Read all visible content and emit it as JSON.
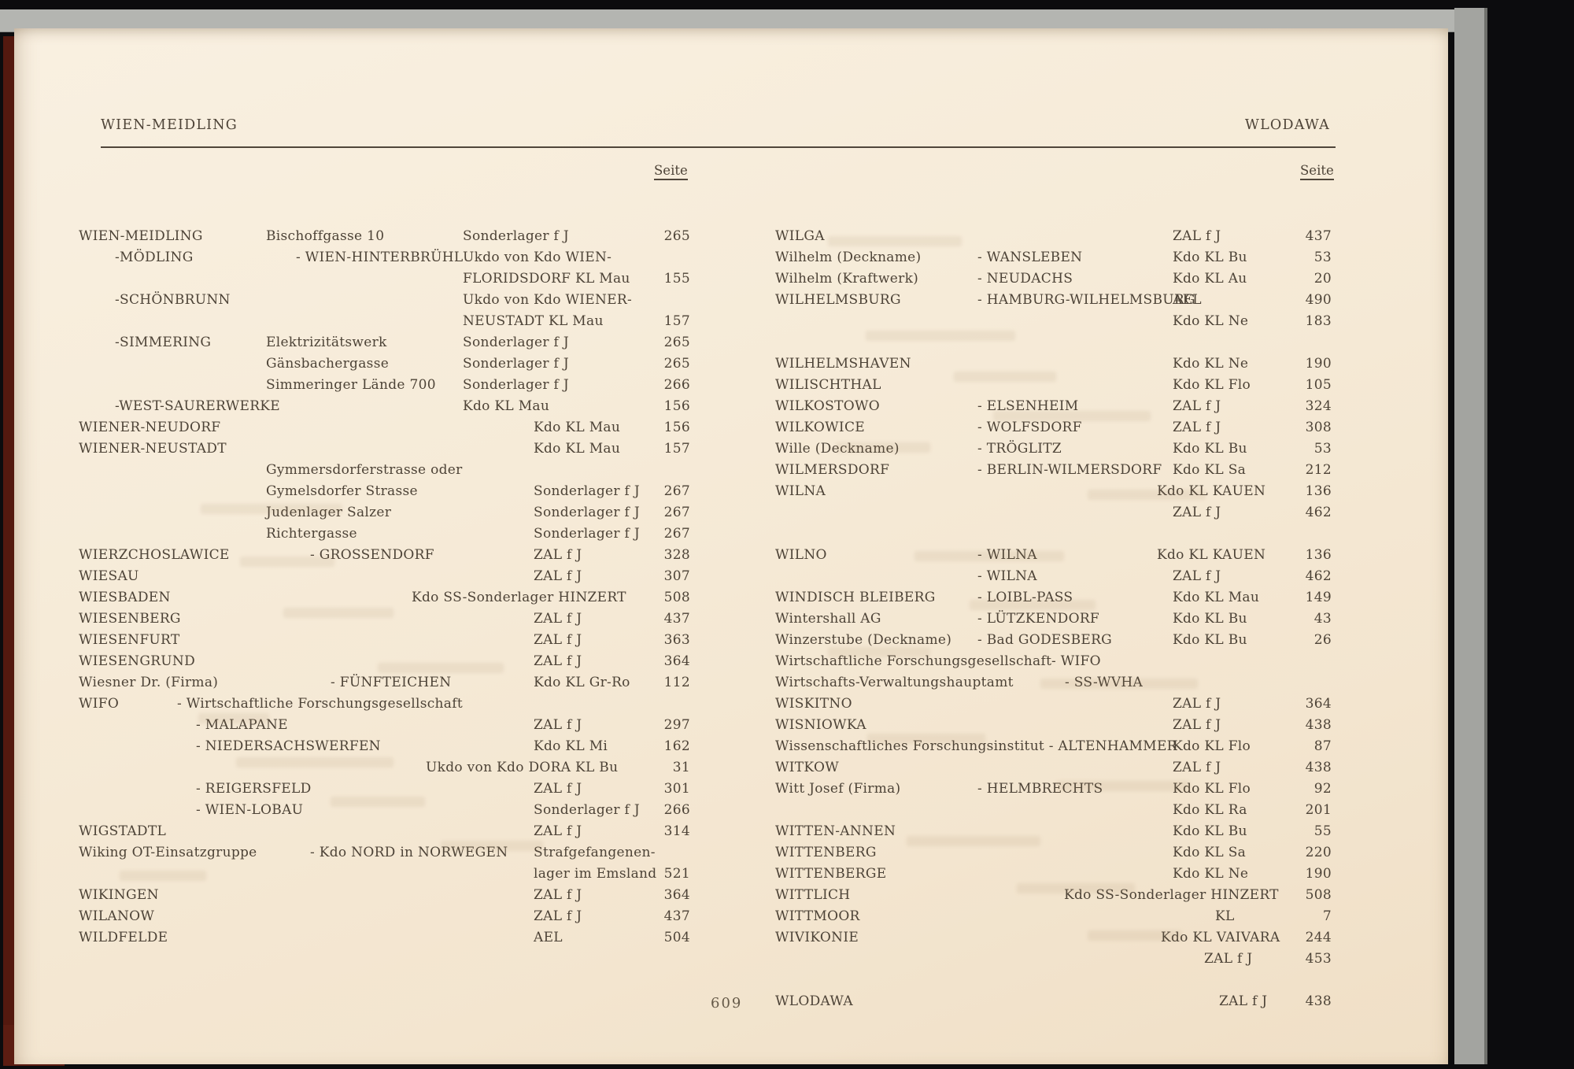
{
  "page": {
    "header_left": "WIEN-MEIDLING",
    "header_right": "WLODAWA",
    "seite_label": "Seite",
    "page_number": "609",
    "ink_color": "#4d4337",
    "paper_color": "#f5e9d6",
    "cover_color": "#a3a4a0",
    "spine_color": "#54190f"
  },
  "columns": {
    "left": {
      "rows": [
        [
          {
            "t": "WIEN-MEIDLING",
            "k": "name"
          },
          {
            "t": "Bischoffgasse 10",
            "k": "street"
          },
          {
            "t": "Sonderlager f J",
            "k": "camp1"
          },
          {
            "t": "265",
            "k": "page"
          }
        ],
        [
          {
            "t": "-MÖDLING",
            "k": "sub"
          },
          {
            "t": "- WIEN-HINTERBRÜHL",
            "k": "alias"
          },
          {
            "t": "Ukdo von Kdo WIEN-",
            "k": "camp1"
          }
        ],
        [
          {
            "t": "FLORIDSDORF KL Mau",
            "k": "camp1"
          },
          {
            "t": "155",
            "k": "page"
          }
        ],
        [
          {
            "t": "-SCHÖNBRUNN",
            "k": "sub"
          },
          {
            "t": "Ukdo von Kdo WIENER-",
            "k": "camp1"
          }
        ],
        [
          {
            "t": "NEUSTADT KL Mau",
            "k": "camp1"
          },
          {
            "t": "157",
            "k": "page"
          }
        ],
        [
          {
            "t": "-SIMMERING",
            "k": "sub"
          },
          {
            "t": "Elektrizitätswerk",
            "k": "street"
          },
          {
            "t": "Sonderlager f J",
            "k": "camp1"
          },
          {
            "t": "265",
            "k": "page"
          }
        ],
        [
          {
            "t": "Gänsbachergasse",
            "k": "street"
          },
          {
            "t": "Sonderlager f J",
            "k": "camp1"
          },
          {
            "t": "265",
            "k": "page"
          }
        ],
        [
          {
            "t": "Simmeringer Lände 700",
            "k": "street"
          },
          {
            "t": "Sonderlager f J",
            "k": "camp1"
          },
          {
            "t": "266",
            "k": "page"
          }
        ],
        [
          {
            "t": "-WEST-SAURERWERKE",
            "k": "sub"
          },
          {
            "t": "Kdo KL Mau",
            "k": "camp1"
          },
          {
            "t": "156",
            "k": "page"
          }
        ],
        [
          {
            "t": "WIENER-NEUDORF",
            "k": "name"
          },
          {
            "t": "Kdo KL Mau",
            "k": "camp2"
          },
          {
            "t": "156",
            "k": "page"
          }
        ],
        [
          {
            "t": "WIENER-NEUSTADT",
            "k": "name"
          },
          {
            "t": "Kdo KL Mau",
            "k": "camp2"
          },
          {
            "t": "157",
            "k": "page"
          }
        ],
        [
          {
            "t": "Gymmersdorferstrasse oder",
            "k": "street"
          }
        ],
        [
          {
            "t": "Gymelsdorfer Strasse",
            "k": "street"
          },
          {
            "t": "Sonderlager f J",
            "k": "camp2"
          },
          {
            "t": "267",
            "k": "page"
          }
        ],
        [
          {
            "t": "Judenlager Salzer",
            "k": "street"
          },
          {
            "t": "Sonderlager f J",
            "k": "camp2"
          },
          {
            "t": "267",
            "k": "page"
          }
        ],
        [
          {
            "t": "Richtergasse",
            "k": "street"
          },
          {
            "t": "Sonderlager f J",
            "k": "camp2"
          },
          {
            "t": "267",
            "k": "page"
          }
        ],
        [
          {
            "t": "WIERZCHOSLAWICE",
            "k": "name"
          },
          {
            "t": "- GROSSENDORF",
            "k": "alias2"
          },
          {
            "t": "ZAL f J",
            "k": "camp2"
          },
          {
            "t": "328",
            "k": "page"
          }
        ],
        [
          {
            "t": "WIESAU",
            "k": "name"
          },
          {
            "t": "ZAL f J",
            "k": "camp2"
          },
          {
            "t": "307",
            "k": "page"
          }
        ],
        [
          {
            "t": "WIESBADEN",
            "k": "name"
          },
          {
            "t": "Kdo SS-Sonderlager HINZERT",
            "k": "hinzertL"
          },
          {
            "t": "508",
            "k": "page"
          }
        ],
        [
          {
            "t": "WIESENBERG",
            "k": "name"
          },
          {
            "t": "ZAL f J",
            "k": "camp2"
          },
          {
            "t": "437",
            "k": "page"
          }
        ],
        [
          {
            "t": "WIESENFURT",
            "k": "name"
          },
          {
            "t": "ZAL f J",
            "k": "camp2"
          },
          {
            "t": "363",
            "k": "page"
          }
        ],
        [
          {
            "t": "WIESENGRUND",
            "k": "name"
          },
          {
            "t": "ZAL f J",
            "k": "camp2"
          },
          {
            "t": "364",
            "k": "page"
          }
        ],
        [
          {
            "t": "Wiesner Dr. (Firma)",
            "k": "name"
          },
          {
            "t": "- FÜNFTEICHEN",
            "k": "aliasdeep"
          },
          {
            "t": "Kdo KL Gr-Ro",
            "k": "camp2"
          },
          {
            "t": "112",
            "k": "page"
          }
        ],
        [
          {
            "t": "WIFO",
            "k": "name"
          },
          {
            "t": "- Wirtschaftliche Forschungsgesellschaft",
            "k": "wifohead"
          }
        ],
        [
          {
            "t": "- MALAPANE",
            "k": "wifosub"
          },
          {
            "t": "ZAL f J",
            "k": "camp2"
          },
          {
            "t": "297",
            "k": "page"
          }
        ],
        [
          {
            "t": "- NIEDERSACHSWERFEN",
            "k": "wifosub"
          },
          {
            "t": "Kdo KL Mi",
            "k": "camp2"
          },
          {
            "t": "162",
            "k": "page"
          }
        ],
        [
          {
            "t": "Ukdo von Kdo DORA KL Bu",
            "k": "doraL"
          },
          {
            "t": "31",
            "k": "page"
          }
        ],
        [
          {
            "t": "- REIGERSFELD",
            "k": "wifosub"
          },
          {
            "t": "ZAL f J",
            "k": "camp2"
          },
          {
            "t": "301",
            "k": "page"
          }
        ],
        [
          {
            "t": "- WIEN-LOBAU",
            "k": "wifosub"
          },
          {
            "t": "Sonderlager f J",
            "k": "camp2"
          },
          {
            "t": "266",
            "k": "page"
          }
        ],
        [
          {
            "t": "WIGSTADTL",
            "k": "name"
          },
          {
            "t": "ZAL f J",
            "k": "camp2"
          },
          {
            "t": "314",
            "k": "page"
          }
        ],
        [
          {
            "t": "Wiking OT-Einsatzgruppe",
            "k": "name"
          },
          {
            "t": "- Kdo NORD in NORWEGEN",
            "k": "wiking"
          },
          {
            "t": "Strafgefangenen-",
            "k": "camp2"
          }
        ],
        [
          {
            "t": "lager im Emsland",
            "k": "camp2"
          },
          {
            "t": "521",
            "k": "page"
          }
        ],
        [
          {
            "t": "WIKINGEN",
            "k": "name"
          },
          {
            "t": "ZAL f J",
            "k": "camp2"
          },
          {
            "t": "364",
            "k": "page"
          }
        ],
        [
          {
            "t": "WILANOW",
            "k": "name"
          },
          {
            "t": "ZAL f J",
            "k": "camp2"
          },
          {
            "t": "437",
            "k": "page"
          }
        ],
        [
          {
            "t": "WILDFELDE",
            "k": "name"
          },
          {
            "t": "AEL",
            "k": "camp2"
          },
          {
            "t": "504",
            "k": "page"
          }
        ]
      ]
    },
    "right": {
      "rows": [
        [
          {
            "t": "WILGA",
            "k": "rname"
          },
          {
            "t": "ZAL f J",
            "k": "rcamp"
          },
          {
            "t": "437",
            "k": "rpage"
          }
        ],
        [
          {
            "t": "Wilhelm (Deckname)",
            "k": "rname"
          },
          {
            "t": "- WANSLEBEN",
            "k": "rc2"
          },
          {
            "t": "Kdo KL Bu",
            "k": "rcamp"
          },
          {
            "t": "53",
            "k": "rpage"
          }
        ],
        [
          {
            "t": "Wilhelm (Kraftwerk)",
            "k": "rname"
          },
          {
            "t": "- NEUDACHS",
            "k": "rc2"
          },
          {
            "t": "Kdo KL Au",
            "k": "rcamp"
          },
          {
            "t": "20",
            "k": "rpage"
          }
        ],
        [
          {
            "t": "WILHELMSBURG",
            "k": "rname"
          },
          {
            "t": "- HAMBURG-WILHELMSBURG",
            "k": "rc2"
          },
          {
            "t": "AEL",
            "k": "rcamp"
          },
          {
            "t": "490",
            "k": "rpage"
          }
        ],
        [
          {
            "t": "Kdo KL Ne",
            "k": "rcamp"
          },
          {
            "t": "183",
            "k": "rpage"
          }
        ],
        [],
        [
          {
            "t": "WILHELMSHAVEN",
            "k": "rname"
          },
          {
            "t": "Kdo KL Ne",
            "k": "rcamp"
          },
          {
            "t": "190",
            "k": "rpage"
          }
        ],
        [
          {
            "t": "WILISCHTHAL",
            "k": "rname"
          },
          {
            "t": "Kdo KL Flo",
            "k": "rcamp"
          },
          {
            "t": "105",
            "k": "rpage"
          }
        ],
        [
          {
            "t": "WILKOSTOWO",
            "k": "rname"
          },
          {
            "t": "- ELSENHEIM",
            "k": "rc2"
          },
          {
            "t": "ZAL f J",
            "k": "rcamp"
          },
          {
            "t": "324",
            "k": "rpage"
          }
        ],
        [
          {
            "t": "WILKOWICE",
            "k": "rname"
          },
          {
            "t": "- WOLFSDORF",
            "k": "rc2"
          },
          {
            "t": "ZAL f J",
            "k": "rcamp"
          },
          {
            "t": "308",
            "k": "rpage"
          }
        ],
        [
          {
            "t": "Wille (Deckname)",
            "k": "rname"
          },
          {
            "t": "- TRÖGLITZ",
            "k": "rc2"
          },
          {
            "t": "Kdo KL Bu",
            "k": "rcamp"
          },
          {
            "t": "53",
            "k": "rpage"
          }
        ],
        [
          {
            "t": "WILMERSDORF",
            "k": "rname"
          },
          {
            "t": "- BERLIN-WILMERSDORF",
            "k": "rc2"
          },
          {
            "t": "Kdo KL Sa",
            "k": "rcamp"
          },
          {
            "t": "212",
            "k": "rpage"
          }
        ],
        [
          {
            "t": "WILNA",
            "k": "rname"
          },
          {
            "t": "Kdo KL KAUEN",
            "k": "rkauen"
          },
          {
            "t": "136",
            "k": "rpage"
          }
        ],
        [
          {
            "t": "ZAL f J",
            "k": "rcamp"
          },
          {
            "t": "462",
            "k": "rpage"
          }
        ],
        [],
        [
          {
            "t": "WILNO",
            "k": "rname"
          },
          {
            "t": "- WILNA",
            "k": "rc2"
          },
          {
            "t": "Kdo KL KAUEN",
            "k": "rkauen"
          },
          {
            "t": "136",
            "k": "rpage"
          }
        ],
        [
          {
            "t": "- WILNA",
            "k": "rc2"
          },
          {
            "t": "ZAL f J",
            "k": "rcamp"
          },
          {
            "t": "462",
            "k": "rpage"
          }
        ],
        [
          {
            "t": "WINDISCH BLEIBERG",
            "k": "rname"
          },
          {
            "t": "- LOIBL-PASS",
            "k": "rc2"
          },
          {
            "t": "Kdo KL Mau",
            "k": "rcamp"
          },
          {
            "t": "149",
            "k": "rpage"
          }
        ],
        [
          {
            "t": "Wintershall AG",
            "k": "rname"
          },
          {
            "t": "- LÜTZKENDORF",
            "k": "rc2"
          },
          {
            "t": "Kdo KL Bu",
            "k": "rcamp"
          },
          {
            "t": "43",
            "k": "rpage"
          }
        ],
        [
          {
            "t": "Winzerstube (Deckname)",
            "k": "rname"
          },
          {
            "t": "- Bad GODESBERG",
            "k": "rc2"
          },
          {
            "t": "Kdo KL Bu",
            "k": "rcamp"
          },
          {
            "t": "26",
            "k": "rpage"
          }
        ],
        [
          {
            "t": "Wirtschaftliche Forschungsgesellschaft",
            "k": "rname"
          },
          {
            "t": "- WIFO",
            "k": "rwifo"
          }
        ],
        [
          {
            "t": "Wirtschafts-Verwaltungshauptamt",
            "k": "rname"
          },
          {
            "t": "- SS-WVHA",
            "k": "rwvha"
          }
        ],
        [
          {
            "t": "WISKITNO",
            "k": "rname"
          },
          {
            "t": "ZAL f J",
            "k": "rcamp"
          },
          {
            "t": "364",
            "k": "rpage"
          }
        ],
        [
          {
            "t": "WISNIOWKA",
            "k": "rname"
          },
          {
            "t": "ZAL f J",
            "k": "rcamp"
          },
          {
            "t": "438",
            "k": "rpage"
          }
        ],
        [
          {
            "t": "Wissenschaftliches Forschungsinstitut - ALTENHAMMER",
            "k": "rname"
          },
          {
            "t": "Kdo KL Flo",
            "k": "rcamp"
          },
          {
            "t": "87",
            "k": "rpage"
          }
        ],
        [
          {
            "t": "WITKOW",
            "k": "rname"
          },
          {
            "t": "ZAL f J",
            "k": "rcamp"
          },
          {
            "t": "438",
            "k": "rpage"
          }
        ],
        [
          {
            "t": "Witt Josef (Firma)",
            "k": "rname"
          },
          {
            "t": "- HELMBRECHTS",
            "k": "rc2"
          },
          {
            "t": "Kdo KL Flo",
            "k": "rcamp"
          },
          {
            "t": "92",
            "k": "rpage"
          }
        ],
        [
          {
            "t": "Kdo KL Ra",
            "k": "rcamp"
          },
          {
            "t": "201",
            "k": "rpage"
          }
        ],
        [
          {
            "t": "WITTEN-ANNEN",
            "k": "rname"
          },
          {
            "t": "Kdo KL Bu",
            "k": "rcamp"
          },
          {
            "t": "55",
            "k": "rpage"
          }
        ],
        [
          {
            "t": "WITTENBERG",
            "k": "rname"
          },
          {
            "t": "Kdo KL Sa",
            "k": "rcamp"
          },
          {
            "t": "220",
            "k": "rpage"
          }
        ],
        [
          {
            "t": "WITTENBERGE",
            "k": "rname"
          },
          {
            "t": "Kdo KL Ne",
            "k": "rcamp"
          },
          {
            "t": "190",
            "k": "rpage"
          }
        ],
        [
          {
            "t": "WITTLICH",
            "k": "rname"
          },
          {
            "t": "Kdo SS-Sonderlager HINZERT",
            "k": "rhinzert"
          },
          {
            "t": "508",
            "k": "rpage"
          }
        ],
        [
          {
            "t": "WITTMOOR",
            "k": "rname"
          },
          {
            "t": "KL",
            "k": "rkl"
          },
          {
            "t": "7",
            "k": "rpage"
          }
        ],
        [
          {
            "t": "WIVIKONIE",
            "k": "rname"
          },
          {
            "t": "Kdo KL VAIVARA",
            "k": "rvaivara"
          },
          {
            "t": "244",
            "k": "rpage"
          }
        ],
        [
          {
            "t": "ZAL f J",
            "k": "rzal453"
          },
          {
            "t": "453",
            "k": "rpage"
          }
        ],
        [],
        [
          {
            "t": "WLODAWA",
            "k": "rname"
          },
          {
            "t": "ZAL f J",
            "k": "rzalw"
          },
          {
            "t": "438",
            "k": "rpage"
          }
        ]
      ]
    }
  }
}
